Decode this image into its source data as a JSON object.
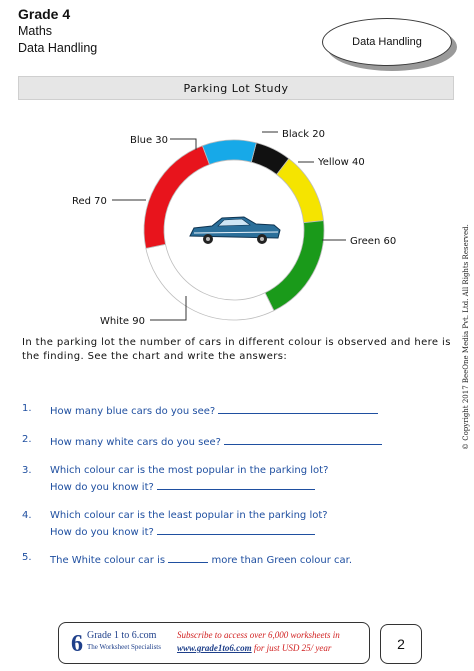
{
  "header": {
    "grade": "Grade 4",
    "subject": "Maths",
    "unit": "Data Handling",
    "topic_badge": "Data Handling"
  },
  "title": "Parking Lot Study",
  "chart_data": {
    "type": "pie",
    "donut": true,
    "center_image": "car-icon",
    "slices": [
      {
        "label": "Black",
        "value": 20,
        "color": "#111111"
      },
      {
        "label": "Yellow",
        "value": 40,
        "color": "#f5e400"
      },
      {
        "label": "Green",
        "value": 60,
        "color": "#1a9a1a"
      },
      {
        "label": "White",
        "value": 90,
        "color": "#ffffff"
      },
      {
        "label": "Red",
        "value": 70,
        "color": "#e8141c"
      },
      {
        "label": "Blue",
        "value": 30,
        "color": "#17a9e8"
      }
    ]
  },
  "intro": "In the parking lot the number of cars in different colour is observed and here is the finding. See the chart and write the answers:",
  "questions": [
    {
      "num": "1.",
      "text": "How many blue cars do you see?"
    },
    {
      "num": "2.",
      "text": "How many white cars do you see?"
    },
    {
      "num": "3.",
      "text": "Which colour car is the most popular in the parking lot?",
      "text2": "How do you know it?"
    },
    {
      "num": "4.",
      "text": "Which colour car is the least popular in the parking lot?",
      "text2": "How do you know it?"
    },
    {
      "num": "5.",
      "text_a": "The White colour car is",
      "text_b": "more than Green colour car."
    }
  ],
  "copyright": "© Copyright 2017 BeeOne Media Pvt. Ltd. All Rights Reserved.",
  "footer": {
    "brand": "Grade 1 to 6.com",
    "tagline": "The Worksheet Specialists",
    "subscribe_line1": "Subscribe to access over 6,000 worksheets in",
    "subscribe_link": "www.grade1to6.com",
    "subscribe_line2_rest": "for just USD 25/ year",
    "page_number": "2"
  },
  "colors": {
    "question_blue": "#1f4fa0",
    "footer_red": "#d12020"
  }
}
